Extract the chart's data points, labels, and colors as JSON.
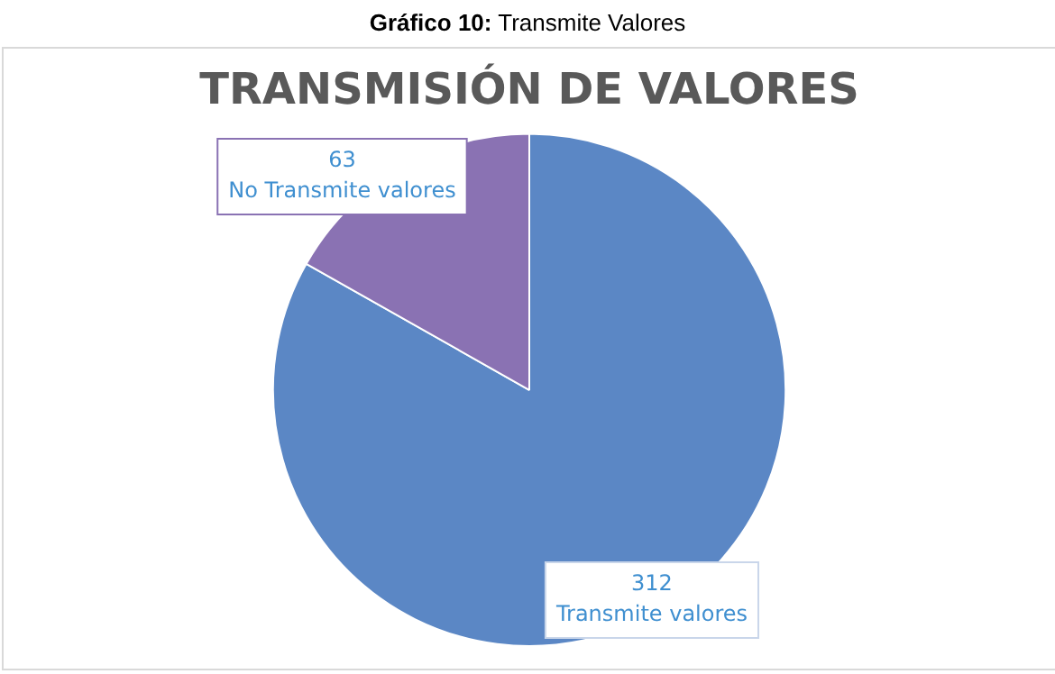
{
  "chart_data": {
    "type": "pie",
    "title": "TRANSMISIÓN DE VALORES",
    "annotations": [
      "Gráfico  10: Transmite Valores"
    ],
    "categories": [
      "Transmite valores",
      "No Transmite valores"
    ],
    "values": [
      312,
      63
    ],
    "colors": [
      "#5b87c5",
      "#8a72b3"
    ],
    "data_labels": true,
    "legend": false
  }
}
